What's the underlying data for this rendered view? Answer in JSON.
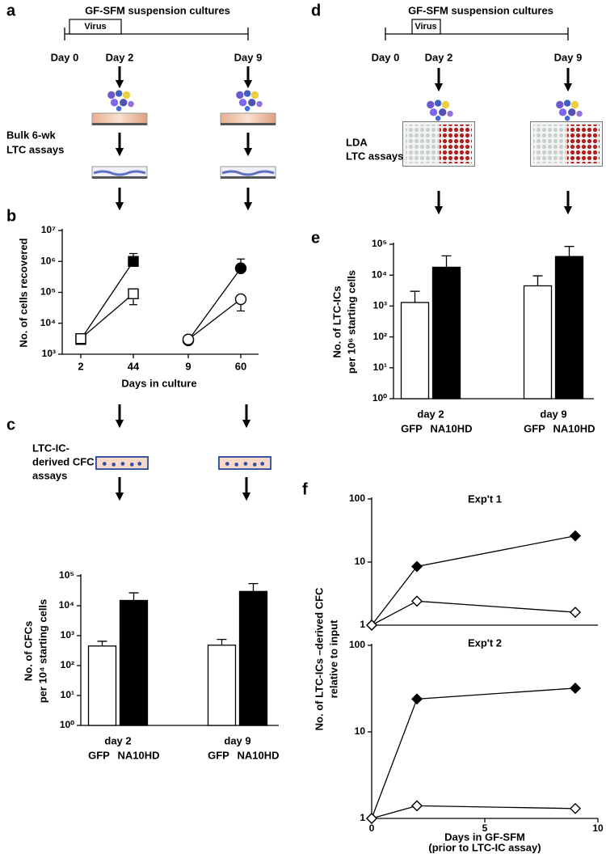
{
  "diagrams": {
    "a": {
      "label": "a",
      "title": "GF-SFM suspension cultures",
      "virus": "Virus",
      "days": [
        "Day 0",
        "Day 2",
        "Day 9"
      ],
      "assay": [
        "Bulk 6-wk",
        "LTC assays"
      ]
    },
    "c": {
      "label": "c",
      "assay": [
        "LTC-IC-",
        "derived CFC",
        "assays"
      ]
    },
    "d": {
      "label": "d",
      "title": "GF-SFM suspension cultures",
      "virus": "Virus",
      "days": [
        "Day 0",
        "Day 2",
        "Day 9"
      ],
      "assay": [
        "LDA",
        "LTC assays"
      ]
    }
  },
  "chart_data": [
    {
      "type": "line",
      "label": "b",
      "ylabel": [
        "No. of cells recovered"
      ],
      "xlabel": [
        "Days in culture"
      ],
      "categories": [
        "2",
        "44",
        "9",
        "60"
      ],
      "log_y": true,
      "ylim": [
        1000,
        10000000
      ],
      "yticks": [
        {
          "value": 1000,
          "label": "10³"
        },
        {
          "value": 10000,
          "label": "10⁴"
        },
        {
          "value": 100000,
          "label": "10⁵"
        },
        {
          "value": 1000000,
          "label": "10⁶"
        },
        {
          "value": 10000000,
          "label": "10⁷"
        }
      ],
      "series": [
        {
          "marker": "square",
          "color": "#000000",
          "fill": "#000000",
          "values": [
            3000,
            1000000,
            null,
            null
          ],
          "errors_up": [
            null,
            800000,
            null,
            null
          ],
          "errors_down": [
            null,
            null,
            null,
            null
          ]
        },
        {
          "marker": "square",
          "color": "#000000",
          "fill": "#ffffff",
          "values": [
            3200,
            90000,
            null,
            null
          ],
          "errors_up": [
            null,
            null,
            null,
            null
          ],
          "errors_down": [
            null,
            50000,
            null,
            null
          ]
        },
        {
          "marker": "circle",
          "color": "#000000",
          "fill": "#000000",
          "values": [
            null,
            null,
            2800,
            600000
          ],
          "errors_up": [
            null,
            null,
            null,
            600000
          ],
          "errors_down": [
            null,
            null,
            null,
            null
          ]
        },
        {
          "marker": "circle",
          "color": "#000000",
          "fill": "#ffffff",
          "values": [
            null,
            null,
            3000,
            60000
          ],
          "errors_up": [
            null,
            null,
            null,
            null
          ],
          "errors_down": [
            null,
            null,
            null,
            35000
          ]
        }
      ]
    },
    {
      "type": "bar",
      "label": "c",
      "ylabel": [
        "No. of CFCs",
        "per 10⁴ starting cells"
      ],
      "categories": [
        "day 2",
        "day 9"
      ],
      "log_y": true,
      "ylim": [
        1,
        100000
      ],
      "yticks": [
        {
          "value": 1,
          "label": "10⁰"
        },
        {
          "value": 10,
          "label": "10¹"
        },
        {
          "value": 100,
          "label": "10²"
        },
        {
          "value": 1000,
          "label": "10³"
        },
        {
          "value": 10000,
          "label": "10⁴"
        },
        {
          "value": 100000,
          "label": "10⁵"
        }
      ],
      "series": [
        {
          "name": "GFP",
          "color": "#000000",
          "fill": "#ffffff",
          "values": [
            450,
            480
          ],
          "errors": [
            200,
            270
          ]
        },
        {
          "name": "NA10HD",
          "color": "#000000",
          "fill": "#000000",
          "values": [
            15000,
            30000
          ],
          "errors": [
            12000,
            25000
          ]
        }
      ]
    },
    {
      "type": "bar",
      "label": "e",
      "ylabel": [
        "No. of LTC-ICs",
        "per 10⁶ starting cells"
      ],
      "categories": [
        "day 2",
        "day 9"
      ],
      "log_y": true,
      "ylim": [
        1,
        100000
      ],
      "yticks": [
        {
          "value": 1,
          "label": "10⁰"
        },
        {
          "value": 10,
          "label": "10¹"
        },
        {
          "value": 100,
          "label": "10²"
        },
        {
          "value": 1000,
          "label": "10³"
        },
        {
          "value": 10000,
          "label": "10⁴"
        },
        {
          "value": 100000,
          "label": "10⁵"
        }
      ],
      "series": [
        {
          "name": "GFP",
          "color": "#000000",
          "fill": "#ffffff",
          "values": [
            1300,
            4500
          ],
          "errors": [
            1700,
            5000
          ]
        },
        {
          "name": "NA10HD",
          "color": "#000000",
          "fill": "#000000",
          "values": [
            18000,
            40000
          ],
          "errors": [
            24000,
            45000
          ]
        }
      ]
    },
    {
      "type": "line",
      "label": "f",
      "title": "Exp't 1",
      "ylabel": [
        "No. of LTC-ICs –derived CFC",
        "relative to input"
      ],
      "x": [
        0,
        2,
        9
      ],
      "xlim": [
        0,
        10
      ],
      "log_y": true,
      "ylim": [
        1,
        100
      ],
      "yticks": [
        1,
        10,
        100
      ],
      "series": [
        {
          "marker": "diamond",
          "color": "#000000",
          "fill": "#000000",
          "values": [
            1,
            8.5,
            26
          ]
        },
        {
          "marker": "diamond",
          "color": "#000000",
          "fill": "#ffffff",
          "values": [
            1,
            2.4,
            1.6
          ]
        }
      ]
    },
    {
      "type": "line",
      "title": "Exp't 2",
      "xlabel": [
        "Days in GF-SFM",
        "(prior to LTC-IC assay)"
      ],
      "x": [
        0,
        2,
        9
      ],
      "xlim": [
        0,
        10
      ],
      "xticks": [
        0,
        5,
        10
      ],
      "log_y": true,
      "ylim": [
        1,
        100
      ],
      "yticks": [
        1,
        10,
        100
      ],
      "series": [
        {
          "marker": "diamond",
          "color": "#000000",
          "fill": "#000000",
          "values": [
            1,
            24,
            32
          ]
        },
        {
          "marker": "diamond",
          "color": "#000000",
          "fill": "#ffffff",
          "values": [
            1,
            1.4,
            1.3
          ]
        }
      ]
    }
  ]
}
